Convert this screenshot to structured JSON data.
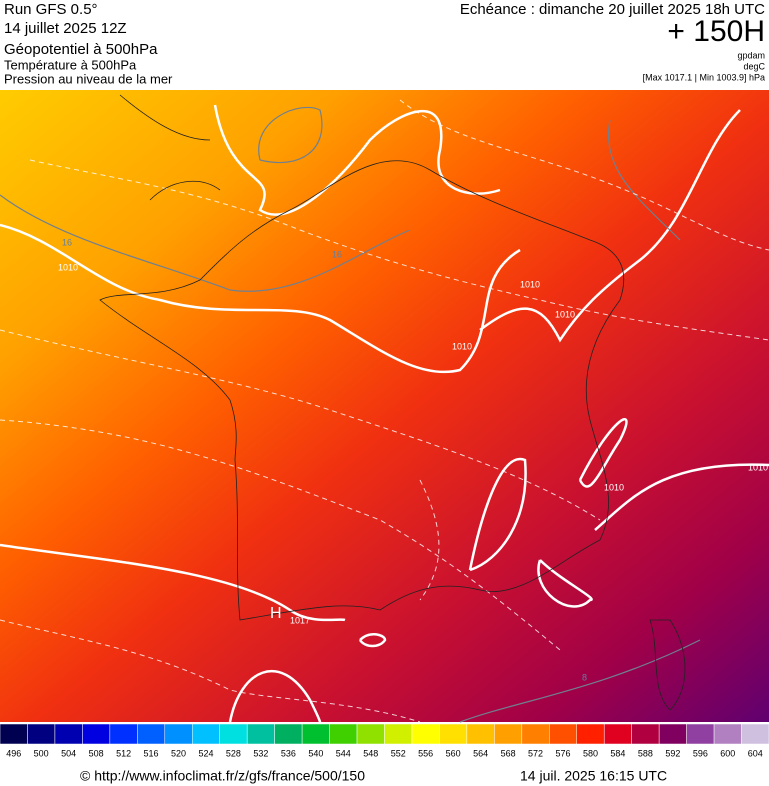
{
  "header": {
    "run": "Run GFS 0.5°",
    "date": "14 juillet 2025 12Z",
    "fields": [
      "Géopotentiel à 500hPa",
      "Température à 500hPa",
      "Pression au niveau de la mer"
    ],
    "valid": "Echéance : dimanche 20 juillet 2025 18h UTC",
    "lead": "+ 150H",
    "units": [
      "gpdam",
      "degC",
      "[Max 1017.1 | Min 1003.9] hPa"
    ]
  },
  "map_labels": [
    "16",
    "1010",
    "16",
    "1010",
    "1010",
    "1010",
    "1010",
    "1010",
    "1017",
    "H",
    "8"
  ],
  "colorbar": {
    "labels": [
      496,
      500,
      504,
      508,
      512,
      516,
      520,
      524,
      528,
      532,
      536,
      540,
      544,
      548,
      552,
      556,
      560,
      564,
      568,
      572,
      576,
      580,
      584,
      588,
      592,
      596,
      600,
      604
    ],
    "colors": [
      "#000050",
      "#000080",
      "#0000b0",
      "#0000e0",
      "#0030ff",
      "#0060ff",
      "#0090ff",
      "#00c0ff",
      "#00e0e0",
      "#00c0a0",
      "#00b060",
      "#00c030",
      "#40d000",
      "#90e000",
      "#d0f000",
      "#ffff00",
      "#ffe000",
      "#ffc000",
      "#ffa000",
      "#ff8000",
      "#ff5000",
      "#ff2000",
      "#e00020",
      "#b00040",
      "#800060",
      "#9040a0",
      "#b080c0",
      "#d0c0e0"
    ]
  },
  "footer": {
    "source": "© http://www.infoclimat.fr/z/gfs/france/500/150",
    "timestamp": "14 juil. 2025 16:15 UTC"
  }
}
